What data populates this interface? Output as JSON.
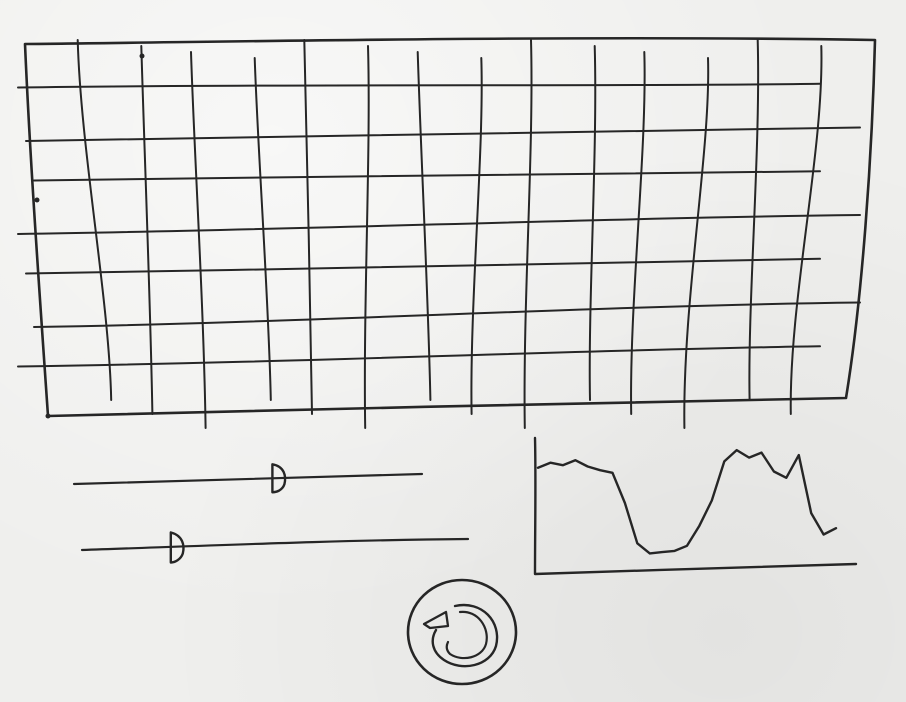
{
  "app": {
    "kind": "hand-drawn UI wireframe sketch",
    "ink_color": "#262626",
    "paper_color": "#efefed"
  },
  "grid_panel": {
    "rows": 7,
    "columns": 14
  },
  "sliders": [
    {
      "name": "slider-top",
      "value_fraction": 0.57
    },
    {
      "name": "slider-bottom",
      "value_fraction": 0.23
    }
  ],
  "waveform_panel": {
    "icon": "waveform-line",
    "values": [
      0.78,
      0.82,
      0.8,
      0.84,
      0.79,
      0.76,
      0.74,
      0.5,
      0.18,
      0.1,
      0.11,
      0.12,
      0.16,
      0.32,
      0.52,
      0.83,
      0.92,
      0.86,
      0.9,
      0.75,
      0.7,
      0.88,
      0.42,
      0.25,
      0.3
    ]
  },
  "reset_button": {
    "icon": "refresh-icon"
  }
}
